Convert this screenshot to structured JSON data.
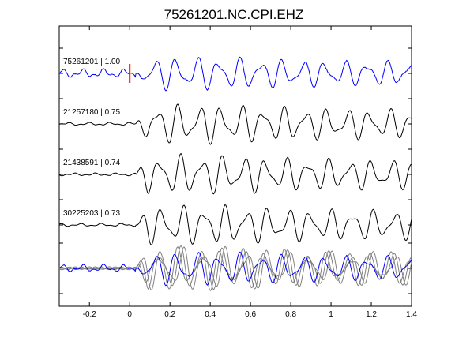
{
  "chart_data": {
    "type": "line",
    "title": "75261201.NC.CPI.EHZ",
    "xlabel": "",
    "ylabel": "",
    "xlim": [
      -0.35,
      1.4
    ],
    "xticks": [
      -0.2,
      0,
      0.2,
      0.4,
      0.6,
      0.8,
      1,
      1.2,
      1.4
    ],
    "xtick_labels": [
      "-0.2",
      "0",
      "0.2",
      "0.4",
      "0.6",
      "0.8",
      "1",
      "1.2",
      "1.4"
    ],
    "grid": false,
    "pick_marker": {
      "x": 0,
      "color": "#ff0000"
    },
    "traces": [
      {
        "label": "75261201 | 1.00",
        "color": "#0000ff"
      },
      {
        "label": "21257180 | 0.75",
        "color": "#000000"
      },
      {
        "label": "21438591 | 0.74",
        "color": "#000000"
      },
      {
        "label": "30225203 | 0.73",
        "color": "#000000"
      }
    ],
    "stack": {
      "template_color": "#0000ff",
      "overlay_color": "#808080"
    }
  }
}
